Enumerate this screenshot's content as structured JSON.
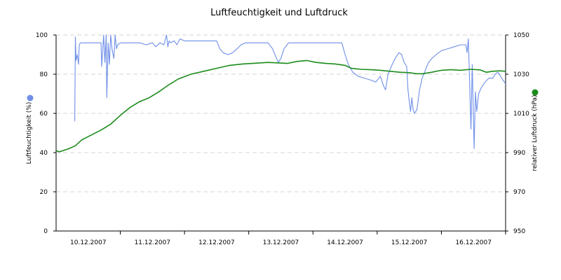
{
  "chart_data": {
    "type": "line",
    "title": "Luftfeuchtigkeit und Luftdruck",
    "grid": true,
    "x_ticks": [
      "10.12.2007",
      "11.12.2007",
      "12.12.2007",
      "13.12.2007",
      "14.12.2007",
      "15.12.2007",
      "16.12.2007"
    ],
    "x_range": [
      0,
      7
    ],
    "y_left": {
      "label": "Luftfeuchtigkeit (%)",
      "range": [
        0,
        100
      ],
      "ticks": [
        "0",
        "20",
        "40",
        "60",
        "80",
        "100"
      ]
    },
    "y_right": {
      "label": "relativer Luftdruck (hPa)",
      "range": [
        950,
        1050
      ],
      "ticks": [
        "950",
        "970",
        "990",
        "1010",
        "1030",
        "1050"
      ]
    },
    "series": [
      {
        "axis": "left",
        "color": "#6f8fe8",
        "points": [
          [
            0.29,
            56
          ],
          [
            0.3,
            99
          ],
          [
            0.31,
            87
          ],
          [
            0.33,
            90
          ],
          [
            0.35,
            85
          ],
          [
            0.36,
            95
          ],
          [
            0.38,
            96
          ],
          [
            0.7,
            96
          ],
          [
            0.71,
            84
          ],
          [
            0.72,
            89
          ],
          [
            0.74,
            100
          ],
          [
            0.76,
            86
          ],
          [
            0.78,
            100
          ],
          [
            0.79,
            68
          ],
          [
            0.81,
            96
          ],
          [
            0.83,
            85
          ],
          [
            0.85,
            100
          ],
          [
            0.87,
            93
          ],
          [
            0.9,
            88
          ],
          [
            0.92,
            100
          ],
          [
            0.94,
            93
          ],
          [
            0.96,
            95
          ],
          [
            1.0,
            96
          ],
          [
            1.3,
            96
          ],
          [
            1.4,
            95
          ],
          [
            1.5,
            96
          ],
          [
            1.55,
            94
          ],
          [
            1.62,
            96
          ],
          [
            1.68,
            95
          ],
          [
            1.72,
            100
          ],
          [
            1.74,
            94
          ],
          [
            1.76,
            97
          ],
          [
            1.78,
            96
          ],
          [
            1.84,
            97
          ],
          [
            1.88,
            95
          ],
          [
            1.93,
            98
          ],
          [
            2.0,
            97
          ],
          [
            2.5,
            97
          ],
          [
            2.55,
            93
          ],
          [
            2.6,
            91
          ],
          [
            2.68,
            90
          ],
          [
            2.75,
            91
          ],
          [
            2.82,
            93
          ],
          [
            2.88,
            95
          ],
          [
            2.95,
            96
          ],
          [
            3.0,
            96
          ],
          [
            3.3,
            96
          ],
          [
            3.37,
            93
          ],
          [
            3.42,
            89
          ],
          [
            3.46,
            86
          ],
          [
            3.5,
            88
          ],
          [
            3.55,
            93
          ],
          [
            3.62,
            96
          ],
          [
            3.7,
            96
          ],
          [
            4.0,
            96
          ],
          [
            4.45,
            96
          ],
          [
            4.5,
            90
          ],
          [
            4.55,
            85
          ],
          [
            4.62,
            81
          ],
          [
            4.7,
            79
          ],
          [
            4.8,
            78
          ],
          [
            4.9,
            77
          ],
          [
            4.98,
            76
          ],
          [
            5.05,
            79
          ],
          [
            5.1,
            74
          ],
          [
            5.13,
            72
          ],
          [
            5.17,
            80
          ],
          [
            5.22,
            84
          ],
          [
            5.28,
            88
          ],
          [
            5.34,
            91
          ],
          [
            5.38,
            90
          ],
          [
            5.42,
            86
          ],
          [
            5.46,
            84
          ],
          [
            5.48,
            72
          ],
          [
            5.5,
            66
          ],
          [
            5.52,
            61
          ],
          [
            5.54,
            68
          ],
          [
            5.56,
            62
          ],
          [
            5.58,
            60
          ],
          [
            5.62,
            62
          ],
          [
            5.66,
            72
          ],
          [
            5.7,
            78
          ],
          [
            5.75,
            82
          ],
          [
            5.8,
            86
          ],
          [
            5.85,
            88
          ],
          [
            5.92,
            90
          ],
          [
            6.0,
            92
          ],
          [
            6.1,
            93
          ],
          [
            6.2,
            94
          ],
          [
            6.3,
            95
          ],
          [
            6.38,
            95
          ],
          [
            6.4,
            91
          ],
          [
            6.42,
            98
          ],
          [
            6.46,
            52
          ],
          [
            6.48,
            85
          ],
          [
            6.51,
            42
          ],
          [
            6.53,
            71
          ],
          [
            6.55,
            61
          ],
          [
            6.58,
            70
          ],
          [
            6.62,
            73
          ],
          [
            6.68,
            76
          ],
          [
            6.74,
            78
          ],
          [
            6.8,
            78
          ],
          [
            6.84,
            80
          ],
          [
            6.88,
            81
          ],
          [
            6.92,
            79
          ],
          [
            6.96,
            77
          ],
          [
            7.0,
            75
          ]
        ]
      },
      {
        "axis": "right",
        "color": "#1b8c1b",
        "points": [
          [
            0.0,
            991
          ],
          [
            0.05,
            990.4
          ],
          [
            0.2,
            992
          ],
          [
            0.3,
            993.5
          ],
          [
            0.4,
            996.5
          ],
          [
            0.55,
            999
          ],
          [
            0.7,
            1001.5
          ],
          [
            0.85,
            1004.5
          ],
          [
            1.0,
            1009
          ],
          [
            1.15,
            1013
          ],
          [
            1.3,
            1016
          ],
          [
            1.45,
            1018
          ],
          [
            1.6,
            1021
          ],
          [
            1.75,
            1024.5
          ],
          [
            1.9,
            1027.5
          ],
          [
            2.1,
            1030
          ],
          [
            2.3,
            1031.5
          ],
          [
            2.5,
            1033
          ],
          [
            2.7,
            1034.5
          ],
          [
            2.9,
            1035.2
          ],
          [
            3.1,
            1035.6
          ],
          [
            3.3,
            1036
          ],
          [
            3.45,
            1035.8
          ],
          [
            3.6,
            1035.5
          ],
          [
            3.75,
            1036.5
          ],
          [
            3.9,
            1037
          ],
          [
            4.05,
            1036
          ],
          [
            4.2,
            1035.5
          ],
          [
            4.35,
            1035.2
          ],
          [
            4.5,
            1034.5
          ],
          [
            4.6,
            1033
          ],
          [
            4.75,
            1032.5
          ],
          [
            4.9,
            1032.3
          ],
          [
            5.05,
            1032
          ],
          [
            5.2,
            1031.5
          ],
          [
            5.35,
            1031
          ],
          [
            5.5,
            1030.8
          ],
          [
            5.6,
            1030.3
          ],
          [
            5.7,
            1030.2
          ],
          [
            5.85,
            1031
          ],
          [
            6.0,
            1032
          ],
          [
            6.15,
            1032.3
          ],
          [
            6.3,
            1032
          ],
          [
            6.45,
            1032.5
          ],
          [
            6.6,
            1032.2
          ],
          [
            6.7,
            1031
          ],
          [
            6.8,
            1031.5
          ],
          [
            6.9,
            1031.7
          ],
          [
            7.0,
            1031.5
          ]
        ]
      }
    ]
  }
}
